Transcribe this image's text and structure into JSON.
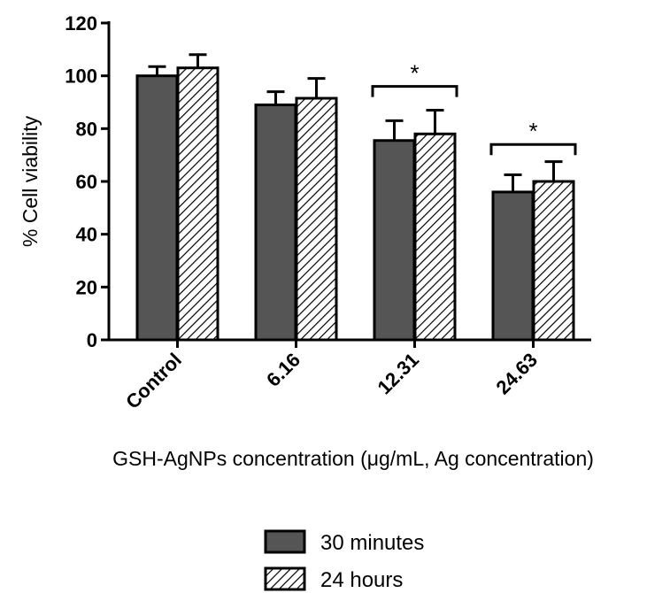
{
  "chart_data": {
    "type": "bar",
    "categories": [
      "Control",
      "6.16",
      "12.31",
      "24.63"
    ],
    "series": [
      {
        "name": "30 minutes",
        "values": [
          100,
          89,
          75.5,
          56
        ],
        "errors": [
          3.5,
          5,
          7.5,
          6.5
        ],
        "fill": "#555555",
        "pattern": "solid"
      },
      {
        "name": "24 hours",
        "values": [
          103,
          91.5,
          78,
          60
        ],
        "errors": [
          5,
          7.5,
          9,
          7.5
        ],
        "fill": "#ffffff",
        "pattern": "hatched"
      }
    ],
    "xlabel": "GSH-AgNPs concentration (μg/mL, Ag concentration)",
    "ylabel": "% Cell viability",
    "ylim": [
      0,
      120
    ],
    "yticks": [
      0,
      20,
      40,
      60,
      80,
      100,
      120
    ],
    "significance": [
      {
        "category": "12.31",
        "label": "*",
        "level": 96
      },
      {
        "category": "24.63",
        "label": "*",
        "level": 74
      }
    ],
    "grid": false,
    "legend_position": "bottom-center"
  }
}
